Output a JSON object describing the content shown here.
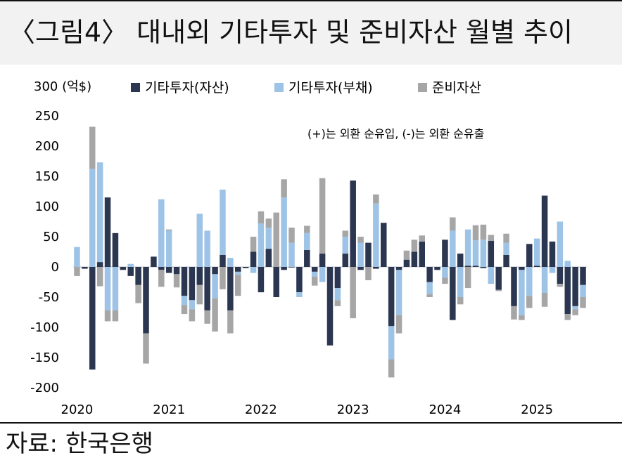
{
  "header": {
    "title": "〈그림4〉 대내외 기타투자 및 준비자산 월별 추이"
  },
  "footer": {
    "source": "자료: 한국은행"
  },
  "colors": {
    "other_assets": "#2b3750",
    "other_liabilities": "#9dc3e6",
    "reserves": "#a6a6a6"
  },
  "chart_data": {
    "type": "bar",
    "stacked": true,
    "unit_label": "300 (억$)",
    "annotation": "(+)는 외환 순유입, (-)는 외환 순유출",
    "ylim": [
      -200,
      300
    ],
    "yticks": [
      -200,
      -150,
      -100,
      -50,
      0,
      50,
      100,
      150,
      200,
      250
    ],
    "ytick_labels": [
      "-200",
      "-150",
      "-100",
      "-50",
      "0",
      "50",
      "100",
      "150",
      "200",
      "250"
    ],
    "xtick_labels": [
      {
        "label": "2020",
        "index": 0
      },
      {
        "label": "2021",
        "index": 12
      },
      {
        "label": "2022",
        "index": 24
      },
      {
        "label": "2023",
        "index": 36
      },
      {
        "label": "2024",
        "index": 48
      },
      {
        "label": "2025",
        "index": 60
      }
    ],
    "legend_position": "top",
    "series": [
      {
        "name": "기타투자(자산)",
        "values": [
          0,
          -3,
          -170,
          8,
          115,
          56,
          -5,
          -15,
          -30,
          -110,
          17,
          -5,
          -10,
          -12,
          -48,
          -55,
          -30,
          -72,
          -12,
          20,
          -72,
          -8,
          -2,
          25,
          -42,
          30,
          -50,
          -5,
          -1,
          -42,
          28,
          -8,
          22,
          -130,
          -35,
          22,
          143,
          -5,
          40,
          -3,
          73,
          -98,
          -5,
          12,
          25,
          42,
          -25,
          -5,
          45,
          -88,
          22,
          2,
          2,
          -2,
          43,
          -38,
          20,
          -65,
          -5,
          38,
          2,
          118,
          42,
          -28,
          -78,
          -65,
          -30
        ],
        "bar_width": [
          1,
          1,
          1,
          1,
          1,
          1,
          1,
          1,
          1,
          1,
          1,
          1,
          1,
          1,
          1,
          1,
          1,
          1,
          1,
          1,
          1,
          1,
          1,
          1,
          1,
          1,
          1,
          1,
          1,
          1,
          1,
          1,
          1,
          1,
          1,
          1,
          1,
          1,
          1,
          1,
          1,
          1,
          1,
          1,
          1,
          1,
          1,
          1,
          1,
          1,
          1,
          1,
          1,
          1,
          1,
          1,
          1,
          1,
          1,
          1,
          1,
          1,
          1,
          1,
          1,
          1,
          1
        ]
      },
      {
        "name": "기타투자(부채)",
        "values": [
          33,
          0,
          162,
          165,
          -72,
          -72,
          0,
          5,
          0,
          0,
          0,
          112,
          60,
          0,
          -15,
          -15,
          88,
          60,
          -40,
          108,
          15,
          -5,
          0,
          -10,
          72,
          35,
          0,
          115,
          40,
          -8,
          28,
          -8,
          -25,
          0,
          -20,
          28,
          0,
          40,
          0,
          105,
          0,
          -55,
          -75,
          0,
          0,
          0,
          -20,
          0,
          -18,
          60,
          -50,
          60,
          42,
          45,
          -28,
          0,
          20,
          0,
          -75,
          -48,
          45,
          -43,
          -10,
          75,
          10,
          -5,
          -20
        ],
        "bar_width": [
          1,
          1,
          1,
          1,
          1,
          1,
          1,
          1,
          1,
          1,
          1,
          1,
          1,
          1,
          1,
          1,
          1,
          1,
          1,
          1,
          1,
          1,
          1,
          1,
          1,
          1,
          1,
          1,
          1,
          1,
          1,
          1,
          1,
          1,
          1,
          1,
          1,
          1,
          1,
          1,
          1,
          1,
          1,
          1,
          1,
          1,
          1,
          1,
          1,
          1,
          1,
          1,
          1,
          1,
          1,
          1,
          1,
          1,
          1,
          1,
          1,
          1,
          1,
          1,
          1,
          1,
          1
        ]
      },
      {
        "name": "준비자산",
        "values": [
          -15,
          0,
          70,
          -32,
          -18,
          -18,
          0,
          0,
          -30,
          -50,
          0,
          -28,
          2,
          -22,
          -15,
          -20,
          -32,
          -22,
          -55,
          -37,
          -38,
          -35,
          0,
          25,
          20,
          15,
          90,
          30,
          25,
          0,
          12,
          -15,
          125,
          0,
          -10,
          10,
          -85,
          10,
          -22,
          15,
          0,
          -30,
          -30,
          15,
          20,
          10,
          -5,
          0,
          -10,
          22,
          -12,
          -35,
          25,
          25,
          10,
          -2,
          15,
          -22,
          -8,
          -20,
          0,
          -23,
          0,
          -5,
          -10,
          -10,
          -18
        ],
        "bar_width": [
          1,
          1,
          1,
          1,
          1,
          1,
          1,
          1,
          1,
          1,
          1,
          1,
          1,
          1,
          1,
          1,
          1,
          1,
          1,
          1,
          1,
          1,
          1,
          1,
          1,
          1,
          1,
          1,
          1,
          1,
          1,
          1,
          1,
          1,
          1,
          1,
          1,
          1,
          1,
          1,
          1,
          1,
          1,
          1,
          1,
          1,
          1,
          1,
          1,
          1,
          1,
          1,
          1,
          1,
          1,
          1,
          1,
          1,
          1,
          1,
          1,
          1,
          1,
          1,
          1,
          1,
          1
        ]
      }
    ]
  }
}
